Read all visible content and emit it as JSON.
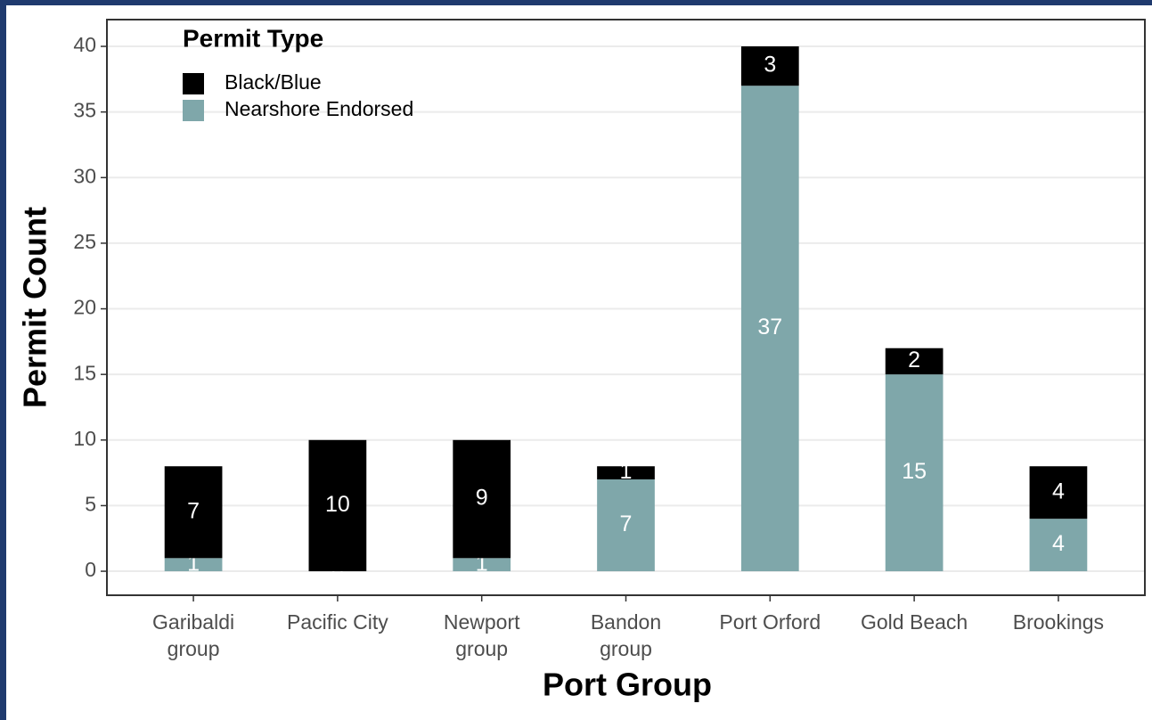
{
  "chart_data": {
    "type": "bar",
    "stacked": true,
    "x_label": "Port Group",
    "y_label": "Permit Count",
    "categories": [
      "Garibaldi\ngroup",
      "Pacific City",
      "Newport\ngroup",
      "Bandon\ngroup",
      "Port Orford",
      "Gold Beach",
      "Brookings"
    ],
    "series": [
      {
        "name": "Nearshore Endorsed",
        "color": "#7fa7aa",
        "values": [
          1,
          0,
          1,
          7,
          37,
          15,
          4
        ]
      },
      {
        "name": "Black/Blue",
        "color": "#000000",
        "values": [
          7,
          10,
          9,
          1,
          3,
          2,
          4
        ]
      }
    ],
    "ylim": [
      -1.83,
      42.04
    ],
    "yticks": [
      0,
      5,
      10,
      15,
      20,
      25,
      30,
      35,
      40
    ],
    "grid": true,
    "legend": {
      "title": "Permit Type",
      "position": "top-left"
    }
  }
}
